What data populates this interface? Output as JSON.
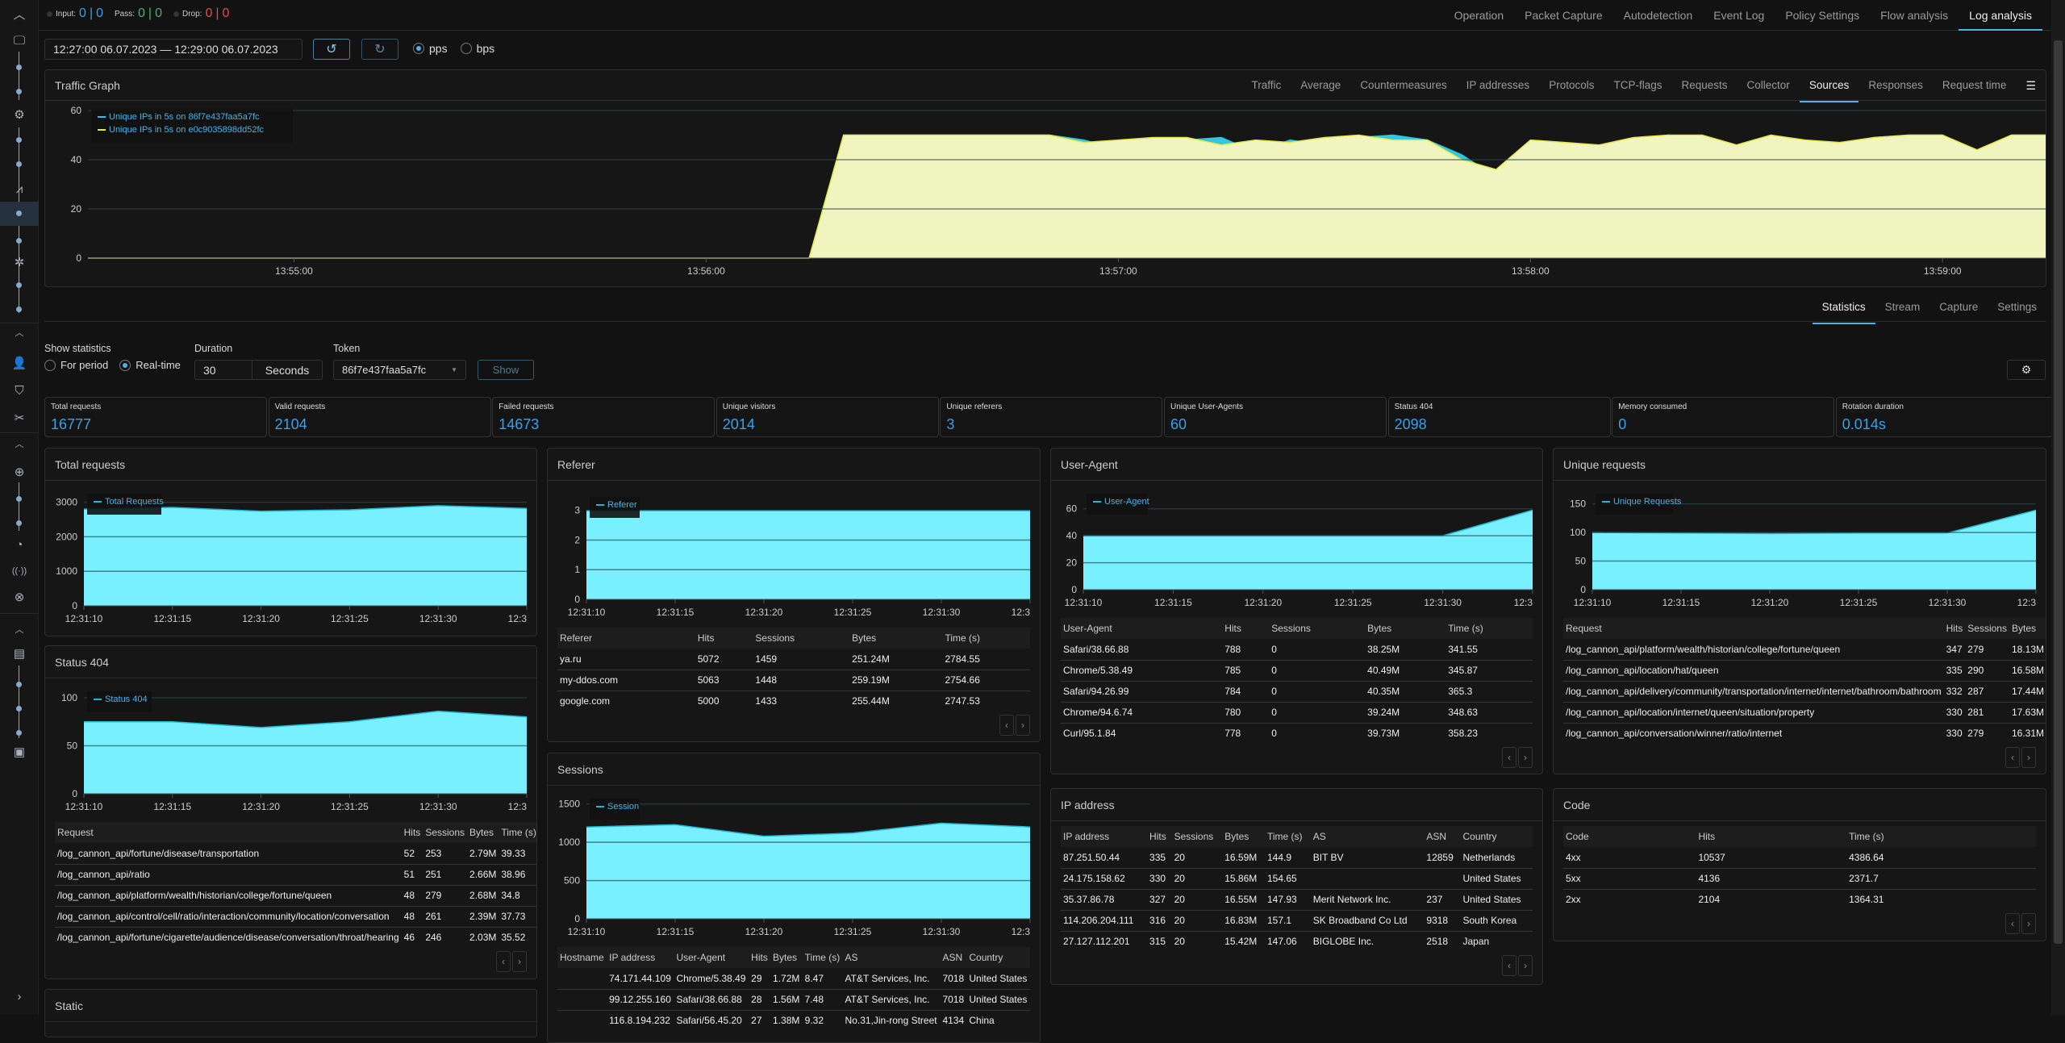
{
  "counters": {
    "input_label": "Input:",
    "input_a": "0",
    "input_b": "0",
    "pass_label": "Pass:",
    "pass_a": "0",
    "pass_b": "0",
    "drop_label": "Drop:",
    "drop_a": "0",
    "drop_b": "0",
    "sep": "|"
  },
  "top_tabs": [
    "Operation",
    "Packet Capture",
    "Autodetection",
    "Event Log",
    "Policy Settings",
    "Flow analysis",
    "Log analysis"
  ],
  "top_active": "Log analysis",
  "date_range": "12:27:00 06.07.2023 — 12:29:00 06.07.2023",
  "units": {
    "pps": "pps",
    "bps": "bps",
    "selected": "pps"
  },
  "traffic": {
    "title": "Traffic Graph",
    "tabs": [
      "Traffic",
      "Average",
      "Countermeasures",
      "IP addresses",
      "Protocols",
      "TCP-flags",
      "Requests",
      "Collector",
      "Sources",
      "Responses",
      "Request time"
    ],
    "active": "Sources"
  },
  "stats_tabs": [
    "Statistics",
    "Stream",
    "Capture",
    "Settings"
  ],
  "stats_active": "Statistics",
  "controls": {
    "show_statistics": "Show statistics",
    "for_period": "For period",
    "real_time": "Real-time",
    "duration_label": "Duration",
    "duration_value": "30",
    "duration_unit": "Seconds",
    "token_label": "Token",
    "token_value": "86f7e437faa5a7fc",
    "show_button": "Show"
  },
  "cards": [
    {
      "label": "Total requests",
      "value": "16777"
    },
    {
      "label": "Valid requests",
      "value": "2104"
    },
    {
      "label": "Failed requests",
      "value": "14673"
    },
    {
      "label": "Unique visitors",
      "value": "2014"
    },
    {
      "label": "Unique referers",
      "value": "3"
    },
    {
      "label": "Unique User-Agents",
      "value": "60"
    },
    {
      "label": "Status 404",
      "value": "2098"
    },
    {
      "label": "Memory consumed",
      "value": "0"
    },
    {
      "label": "Rotation duration",
      "value": "0.014s"
    }
  ],
  "panels": {
    "total": {
      "title": "Total requests"
    },
    "status404": {
      "title": "Status 404",
      "columns": [
        "Request",
        "Hits",
        "Sessions",
        "Bytes",
        "Time (s)"
      ],
      "rows": [
        [
          "/log_cannon_api/fortune/disease/transportation",
          "52",
          "253",
          "2.79M",
          "39.33"
        ],
        [
          "/log_cannon_api/ratio",
          "51",
          "251",
          "2.66M",
          "38.96"
        ],
        [
          "/log_cannon_api/platform/wealth/historian/college/fortune/queen",
          "48",
          "279",
          "2.68M",
          "34.8"
        ],
        [
          "/log_cannon_api/control/cell/ratio/interaction/community/location/conversation",
          "48",
          "261",
          "2.39M",
          "37.73"
        ],
        [
          "/log_cannon_api/fortune/cigarette/audience/disease/conversation/throat/hearing",
          "46",
          "246",
          "2.03M",
          "35.52"
        ]
      ]
    },
    "static": {
      "title": "Static"
    },
    "referer": {
      "title": "Referer",
      "columns": [
        "Referer",
        "Hits",
        "Sessions",
        "Bytes",
        "Time (s)"
      ],
      "rows": [
        [
          "ya.ru",
          "5072",
          "1459",
          "251.24M",
          "2784.55"
        ],
        [
          "my-ddos.com",
          "5063",
          "1448",
          "259.19M",
          "2754.66"
        ],
        [
          "google.com",
          "5000",
          "1433",
          "255.44M",
          "2747.53"
        ]
      ]
    },
    "sessions": {
      "title": "Sessions",
      "columns": [
        "Hostname",
        "IP address",
        "User-Agent",
        "Hits",
        "Bytes",
        "Time (s)",
        "AS",
        "ASN",
        "Country"
      ],
      "rows": [
        [
          "",
          "74.171.44.109",
          "Chrome/5.38.49",
          "29",
          "1.72M",
          "8.47",
          "AT&T Services, Inc.",
          "7018",
          "United States"
        ],
        [
          "",
          "99.12.255.160",
          "Safari/38.66.88",
          "28",
          "1.56M",
          "7.48",
          "AT&T Services, Inc.",
          "7018",
          "United States"
        ],
        [
          "",
          "116.8.194.232",
          "Safari/56.45.20",
          "27",
          "1.38M",
          "9.32",
          "No.31,Jin-rong Street",
          "4134",
          "China"
        ]
      ]
    },
    "useragent": {
      "title": "User-Agent",
      "columns": [
        "User-Agent",
        "Hits",
        "Sessions",
        "Bytes",
        "Time (s)"
      ],
      "rows": [
        [
          "Safari/38.66.88",
          "788",
          "0",
          "38.25M",
          "341.55"
        ],
        [
          "Chrome/5.38.49",
          "785",
          "0",
          "40.49M",
          "345.87"
        ],
        [
          "Safari/94.26.99",
          "784",
          "0",
          "40.35M",
          "365.3"
        ],
        [
          "Chrome/94.6.74",
          "780",
          "0",
          "39.24M",
          "348.63"
        ],
        [
          "Curl/95.1.84",
          "778",
          "0",
          "39.73M",
          "358.23"
        ]
      ]
    },
    "ip": {
      "title": "IP address",
      "columns": [
        "IP address",
        "Hits",
        "Sessions",
        "Bytes",
        "Time (s)",
        "AS",
        "ASN",
        "Country"
      ],
      "rows": [
        [
          "87.251.50.44",
          "335",
          "20",
          "16.59M",
          "144.9",
          "BIT BV",
          "12859",
          "Netherlands"
        ],
        [
          "24.175.158.62",
          "330",
          "20",
          "15.86M",
          "154.65",
          "",
          "",
          "United States"
        ],
        [
          "35.37.86.78",
          "327",
          "20",
          "16.55M",
          "147.93",
          "Merit Network Inc.",
          "237",
          "United States"
        ],
        [
          "114.206.204.111",
          "316",
          "20",
          "16.83M",
          "157.1",
          "SK Broadband Co Ltd",
          "9318",
          "South Korea"
        ],
        [
          "27.127.112.201",
          "315",
          "20",
          "15.42M",
          "147.06",
          "BIGLOBE Inc.",
          "2518",
          "Japan"
        ]
      ]
    },
    "unique": {
      "title": "Unique requests",
      "columns": [
        "Request",
        "Hits",
        "Sessions",
        "Bytes",
        "Ti"
      ],
      "rows": [
        [
          "/log_cannon_api/platform/wealth/historian/college/fortune/queen",
          "347",
          "279",
          "18.13M",
          "2"
        ],
        [
          "/log_cannon_api/location/hat/queen",
          "335",
          "290",
          "16.58M",
          "2"
        ],
        [
          "/log_cannon_api/delivery/community/transportation/internet/internet/bathroom/bathroom",
          "332",
          "287",
          "17.44M",
          "2"
        ],
        [
          "/log_cannon_api/location/internet/queen/situation/property",
          "330",
          "281",
          "17.63M",
          "2"
        ],
        [
          "/log_cannon_api/conversation/winner/ratio/internet",
          "330",
          "279",
          "16.31M",
          "2"
        ]
      ]
    },
    "code": {
      "title": "Code",
      "columns": [
        "Code",
        "Hits",
        "Time (s)"
      ],
      "rows": [
        [
          "4xx",
          "10537",
          "4386.64"
        ],
        [
          "5xx",
          "4136",
          "2371.7"
        ],
        [
          "2xx",
          "2104",
          "1364.31"
        ]
      ]
    }
  },
  "pager": {
    "prev": "‹",
    "next": "›"
  },
  "chart_data": [
    {
      "id": "traffic",
      "type": "area",
      "title": "Traffic Graph",
      "ylim": [
        0,
        60
      ],
      "yticks": [
        0,
        20,
        40,
        60
      ],
      "xticks": [
        "13:55:00",
        "13:56:00",
        "13:57:00",
        "13:58:00",
        "13:59:00"
      ],
      "x_start": "13:54:30",
      "x_step_s": 5,
      "series": [
        {
          "name": "Unique IPs in 5s on 86f7e437faa5a7fc",
          "color": "#2fc8e0",
          "values": [
            0,
            0,
            0,
            0,
            0,
            0,
            0,
            0,
            0,
            0,
            0,
            0,
            0,
            0,
            0,
            0,
            0,
            0,
            0,
            0,
            0,
            0,
            50,
            50,
            50,
            50,
            50,
            50,
            50,
            48,
            44,
            43,
            48,
            49,
            43,
            48,
            46,
            49,
            50,
            48,
            42,
            33,
            47,
            47,
            45,
            48,
            50,
            49,
            45,
            50,
            46,
            46,
            49,
            50,
            50,
            43,
            50,
            50
          ]
        },
        {
          "name": "Unique IPs in 5s on e0c9035898dd52fc",
          "color": "#e8e84a",
          "values": [
            0,
            0,
            0,
            0,
            0,
            0,
            0,
            0,
            0,
            0,
            0,
            0,
            0,
            0,
            0,
            0,
            0,
            0,
            0,
            0,
            0,
            0,
            50,
            50,
            50,
            50,
            50,
            50,
            50,
            47,
            48,
            49,
            49,
            46,
            48,
            47,
            49,
            50,
            48,
            48,
            40,
            36,
            48,
            47,
            46,
            49,
            50,
            50,
            46,
            50,
            48,
            47,
            49,
            50,
            50,
            44,
            50,
            50
          ]
        }
      ]
    },
    {
      "id": "total",
      "type": "area",
      "legend": "Total Requests",
      "xticks": [
        "12:31:10",
        "12:31:15",
        "12:31:20",
        "12:31:25",
        "12:31:30",
        "12:3"
      ],
      "ylim": [
        0,
        3200
      ],
      "yticks": [
        0,
        1000,
        2000,
        3000
      ],
      "values": [
        2800,
        2850,
        2740,
        2780,
        2900,
        2820
      ]
    },
    {
      "id": "referer",
      "type": "area",
      "legend": "Referer",
      "xticks": [
        "12:31:10",
        "12:31:15",
        "12:31:20",
        "12:31:25",
        "12:31:30",
        "12:3"
      ],
      "ylim": [
        0,
        3.4
      ],
      "yticks": [
        0,
        1,
        2,
        3
      ],
      "values": [
        3,
        3,
        3,
        3,
        3,
        3
      ]
    },
    {
      "id": "useragent",
      "type": "area",
      "legend": "User-Agent",
      "xticks": [
        "12:31:10",
        "12:31:15",
        "12:31:20",
        "12:31:25",
        "12:31:30",
        "12:3"
      ],
      "ylim": [
        0,
        70
      ],
      "yticks": [
        0,
        20,
        40,
        60
      ],
      "values": [
        40,
        40,
        40,
        40,
        40,
        59
      ]
    },
    {
      "id": "unique",
      "type": "area",
      "legend": "Unique Requests",
      "xticks": [
        "12:31:10",
        "12:31:15",
        "12:31:20",
        "12:31:25",
        "12:31:30",
        "12:3"
      ],
      "ylim": [
        0,
        165
      ],
      "yticks": [
        0,
        50,
        100,
        150
      ],
      "values": [
        100,
        99,
        98,
        99,
        99,
        139
      ]
    },
    {
      "id": "status404",
      "type": "area",
      "legend": "Status 404",
      "xticks": [
        "12:31:10",
        "12:31:15",
        "12:31:20",
        "12:31:25",
        "12:31:30",
        "12:3"
      ],
      "ylim": [
        0,
        105
      ],
      "yticks": [
        0,
        50,
        100
      ],
      "values": [
        75,
        75,
        69,
        75,
        86,
        80
      ]
    },
    {
      "id": "sessions",
      "type": "area",
      "legend": "Session",
      "xticks": [
        "12:31:10",
        "12:31:15",
        "12:31:20",
        "12:31:25",
        "12:31:30",
        "12:3"
      ],
      "ylim": [
        0,
        1550
      ],
      "yticks": [
        0,
        500,
        1000,
        1500
      ],
      "values": [
        1200,
        1230,
        1080,
        1120,
        1250,
        1200
      ]
    }
  ]
}
